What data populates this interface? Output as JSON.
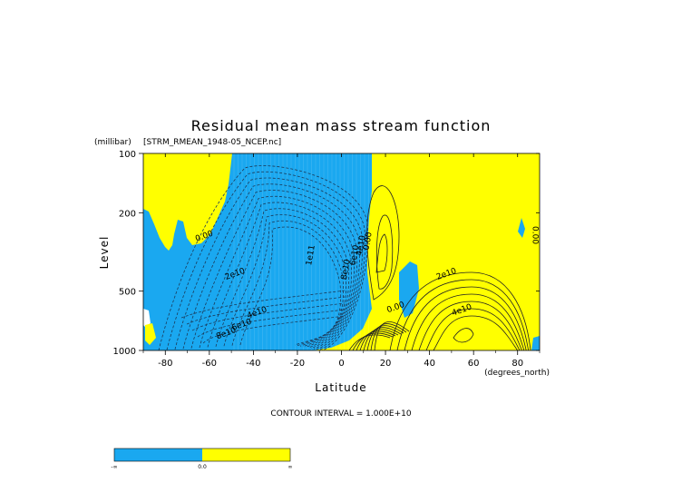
{
  "chart_data": {
    "type": "contour",
    "title": "Residual mean mass stream function",
    "subtitle": "[STRM_RMEAN_1948-05_NCEP.nc]",
    "xlabel": "Latitude",
    "ylabel": "Level",
    "x_units": "(degrees_north)",
    "y_units": "(millibar)",
    "xlim": [
      -90,
      90
    ],
    "ylim": [
      1000,
      100
    ],
    "y_scale": "log",
    "x_ticks": [
      -80,
      -60,
      -40,
      -20,
      0,
      20,
      40,
      60,
      80
    ],
    "y_ticks": [
      100,
      200,
      500,
      1000
    ],
    "contour_interval_text": "CONTOUR INTERVAL = 1.000E+10",
    "contour_labels": [
      {
        "text": "0.00",
        "lat": -62,
        "p": 270
      },
      {
        "text": "2e10",
        "lat": -48,
        "p": 420
      },
      {
        "text": "1e11",
        "lat": -13,
        "p": 330
      },
      {
        "text": "8e10",
        "lat": 3,
        "p": 390
      },
      {
        "text": "6e10",
        "lat": 7,
        "p": 330
      },
      {
        "text": "4e10",
        "lat": 10,
        "p": 295
      },
      {
        "text": "0.00",
        "lat": 13,
        "p": 280
      },
      {
        "text": "4e10",
        "lat": -38,
        "p": 660
      },
      {
        "text": "6e10",
        "lat": -45,
        "p": 760
      },
      {
        "text": "8e10",
        "lat": -52,
        "p": 840
      },
      {
        "text": "0.00",
        "lat": 25,
        "p": 620
      },
      {
        "text": "2e10",
        "lat": 48,
        "p": 420
      },
      {
        "text": "4e10",
        "lat": 55,
        "p": 640
      },
      {
        "text": "0.00",
        "lat": 87,
        "p": 260
      }
    ],
    "fill_colors": {
      "negative": "#1aa8f0",
      "positive": "#ffff00"
    },
    "colorbar": {
      "labels": [
        "-∞",
        "0.0",
        "∞"
      ]
    }
  }
}
